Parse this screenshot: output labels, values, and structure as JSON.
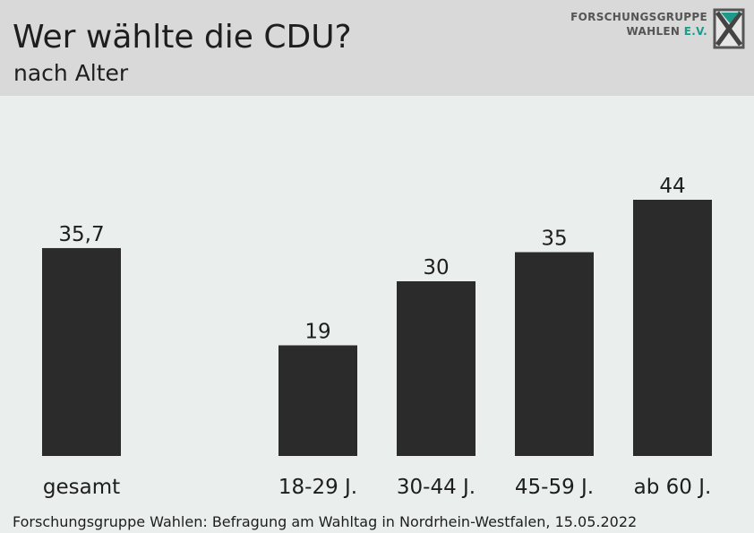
{
  "header": {
    "title": "Wer wählte die CDU?",
    "subtitle": "nach Alter"
  },
  "logo": {
    "line1": "FORSCHUNGSGRUPPE",
    "line2_main": "WAHLEN ",
    "line2_accent": "E.V.",
    "icon": "fgw-x-logo-icon",
    "accent_color": "#1f9a8a"
  },
  "chart_data": {
    "type": "bar",
    "categories": [
      "gesamt",
      "18-29 J.",
      "30-44 J.",
      "45-59 J.",
      "ab 60 J."
    ],
    "values": [
      35.7,
      19,
      30,
      35,
      44
    ],
    "value_labels": [
      "35,7",
      "19",
      "30",
      "35",
      "44"
    ],
    "title": "Wer wählte die CDU?",
    "subtitle": "nach Alter",
    "xlabel": "",
    "ylabel": "",
    "ylim": [
      0,
      50
    ],
    "grid": false,
    "bar_color": "#2b2b2b"
  },
  "footer": {
    "source": "Forschungsgruppe Wahlen: Befragung am Wahltag in Nordrhein-Westfalen, 15.05.2022"
  }
}
